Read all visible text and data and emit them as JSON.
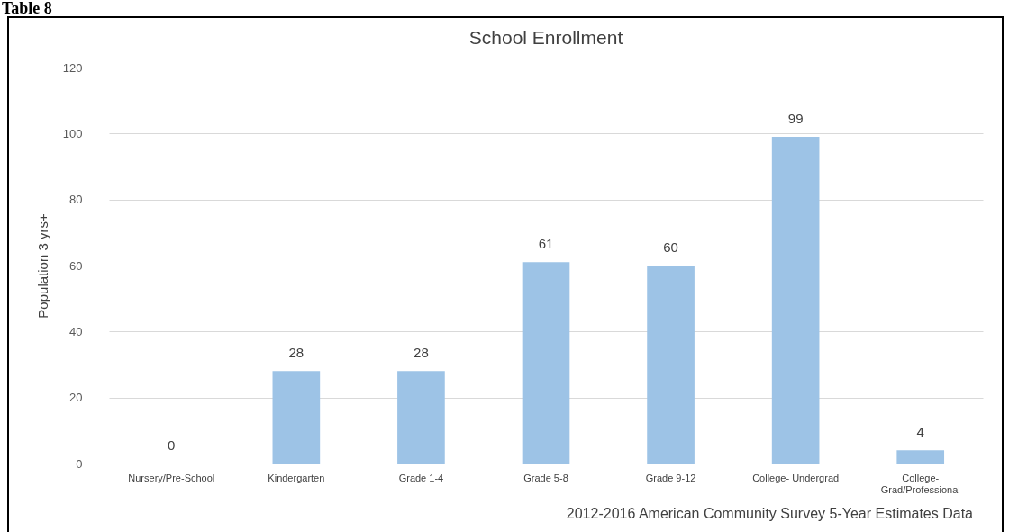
{
  "chart_data": {
    "type": "bar",
    "title": "School Enrollment",
    "ylabel": "Population 3 yrs+",
    "categories": [
      "Nursery/Pre-School",
      "Kindergarten",
      "Grade 1-4",
      "Grade 5-8",
      "Grade 9-12",
      "College- Undergrad",
      "College- Grad/Professional"
    ],
    "values": [
      0,
      28,
      28,
      61,
      60,
      99,
      4
    ],
    "color": "#9dc3e6",
    "ylim": [
      0,
      120
    ],
    "yticks": [
      0,
      20,
      40,
      60,
      80,
      100,
      120
    ],
    "grid": "y",
    "data_labels": true,
    "annotations": [
      "Table 8",
      "2012-2016 American Community Survey 5-Year Estimates Data"
    ]
  }
}
